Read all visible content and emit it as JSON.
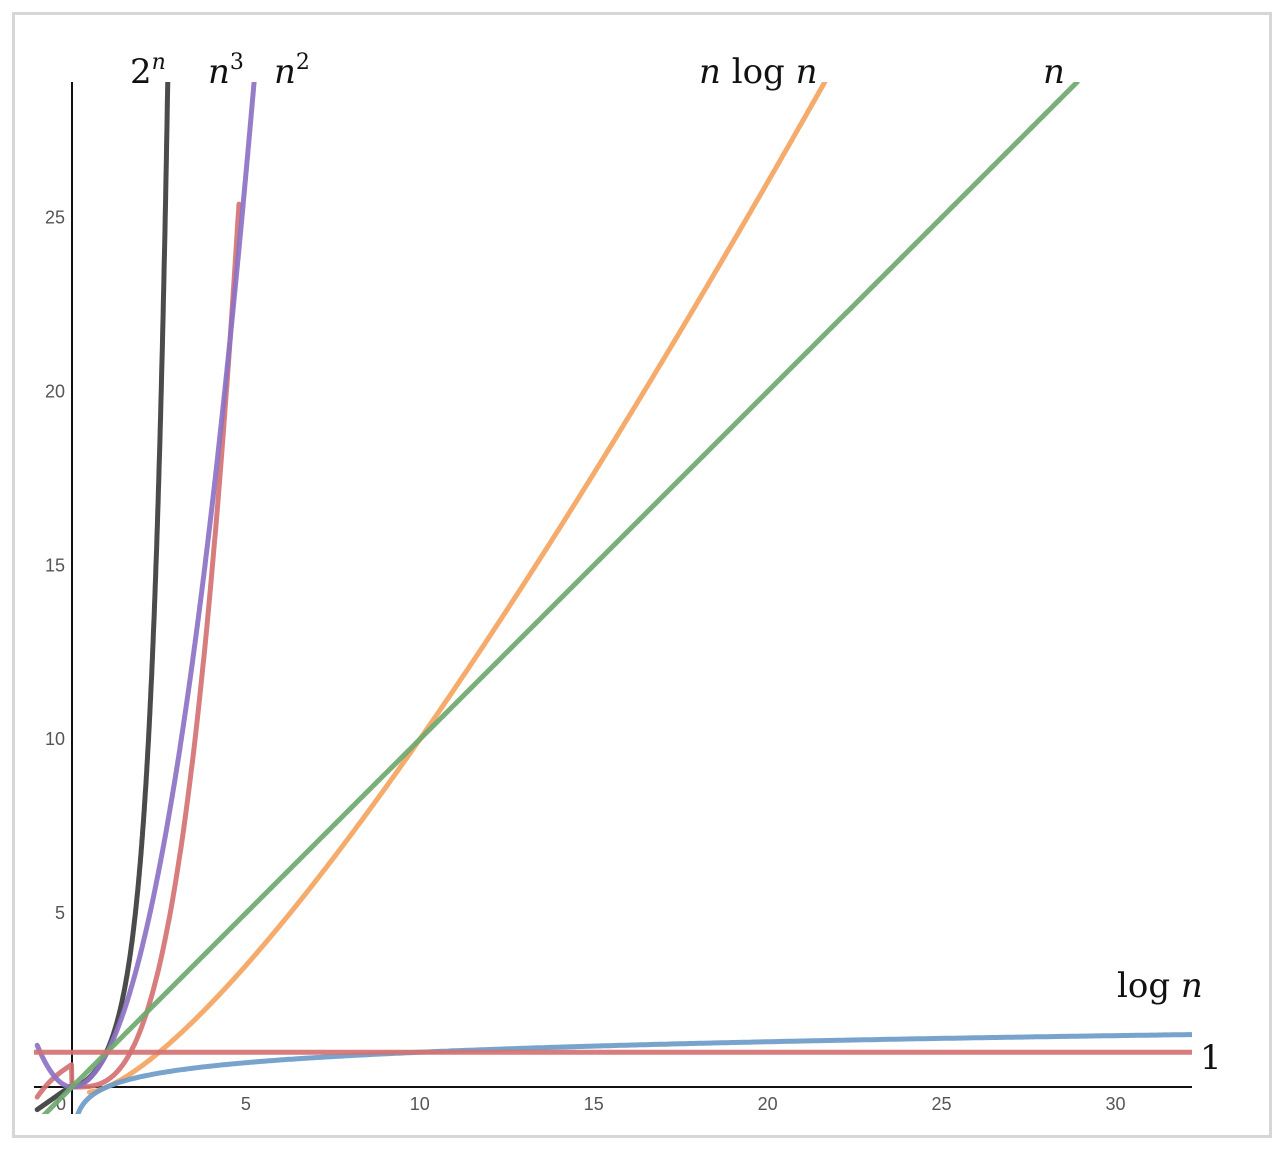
{
  "chart_data": {
    "type": "line",
    "title": "",
    "xlabel": "",
    "ylabel": "",
    "xlim": [
      -1.1,
      32.2
    ],
    "ylim": [
      -0.9,
      28.9
    ],
    "grid": false,
    "x_ticks": [
      0,
      5,
      10,
      15,
      20,
      25,
      30
    ],
    "x_tick_labels": [
      "0",
      "5",
      "10",
      "15",
      "20",
      "25",
      "30"
    ],
    "y_ticks": [
      5,
      10,
      15,
      20,
      25
    ],
    "y_tick_labels": [
      "5",
      "10",
      "15",
      "20",
      "25"
    ],
    "series": [
      {
        "name": "2^n",
        "fn": "exp2",
        "color": "#3c3c3c",
        "x": [
          -1,
          0,
          1,
          2,
          2.5,
          3,
          3.1
        ],
        "y": [
          -0.7,
          0,
          0.2,
          3,
          8.2,
          24,
          28.9
        ]
      },
      {
        "name": "n^3",
        "fn": "cube",
        "color": "#d47272",
        "x": [
          -1,
          0,
          1,
          2,
          3,
          4,
          4.8
        ],
        "y": [
          0.5,
          0,
          1,
          3.5,
          8,
          16,
          28.9
        ]
      },
      {
        "name": "n^2",
        "fn": "square",
        "color": "#8c72c4",
        "x": [
          -1,
          0,
          1,
          2,
          3,
          4,
          5.3
        ],
        "y": [
          1.2,
          0,
          0.4,
          3.6,
          8,
          14.5,
          28.9
        ]
      },
      {
        "name": "n log n",
        "fn": "nlogn",
        "color": "#f4a460",
        "x": [
          0.5,
          1,
          2,
          5,
          10,
          15,
          20,
          21.7
        ],
        "y": [
          -0.1,
          0,
          0.6,
          3.5,
          10,
          17.6,
          26,
          28.9
        ]
      },
      {
        "name": "n",
        "fn": "linear",
        "color": "#6ea86e",
        "x": [
          -1,
          0,
          10,
          20,
          28.9
        ],
        "y": [
          -0.7,
          0.3,
          10,
          19.6,
          28.9
        ]
      },
      {
        "name": "log n",
        "fn": "logn",
        "color": "#6b9bc8",
        "x": [
          0.15,
          0.5,
          1,
          2,
          5,
          10,
          20,
          32.2
        ],
        "y": [
          -0.9,
          -0.3,
          0,
          0.3,
          0.7,
          1,
          1.3,
          1.5
        ]
      },
      {
        "name": "1",
        "fn": "const",
        "color": "#d47272",
        "x": [
          -1.1,
          32.2
        ],
        "y": [
          1,
          1
        ]
      }
    ]
  }
}
